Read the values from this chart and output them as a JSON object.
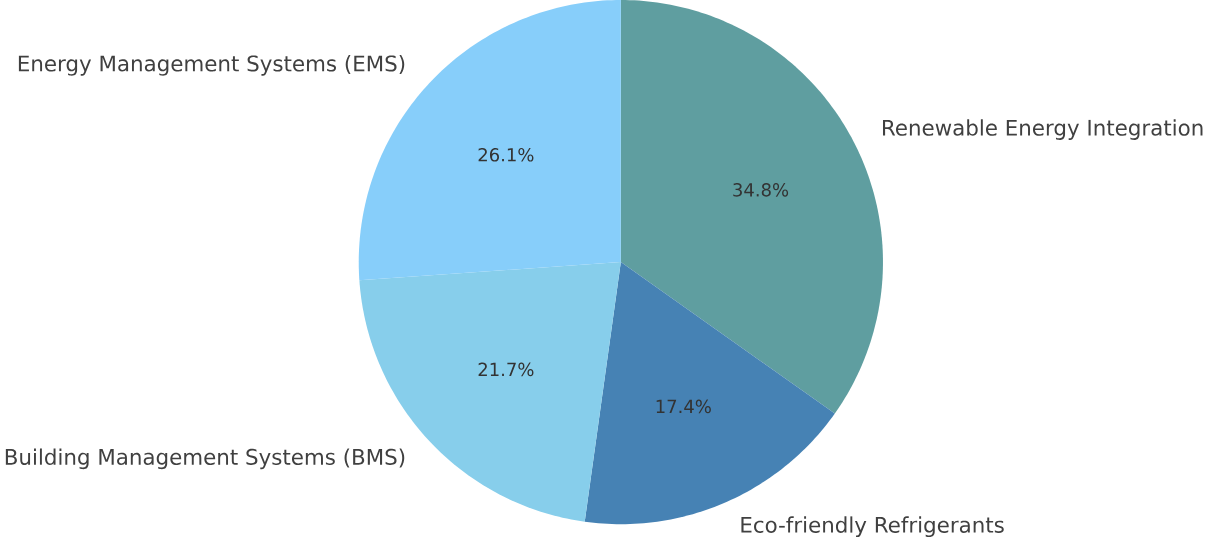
{
  "chart_data": {
    "type": "pie",
    "categories": [
      "Renewable Energy Integration",
      "Eco-friendly Refrigerants",
      "Building Management Systems (BMS)",
      "Energy Management Systems (EMS)"
    ],
    "values": [
      34.8,
      17.4,
      21.7,
      26.1
    ],
    "value_labels": [
      "34.8%",
      "17.4%",
      "21.7%",
      "26.1%"
    ],
    "colors": [
      "#5f9ea0",
      "#4682b4",
      "#87ceeb",
      "#87cefa"
    ]
  }
}
